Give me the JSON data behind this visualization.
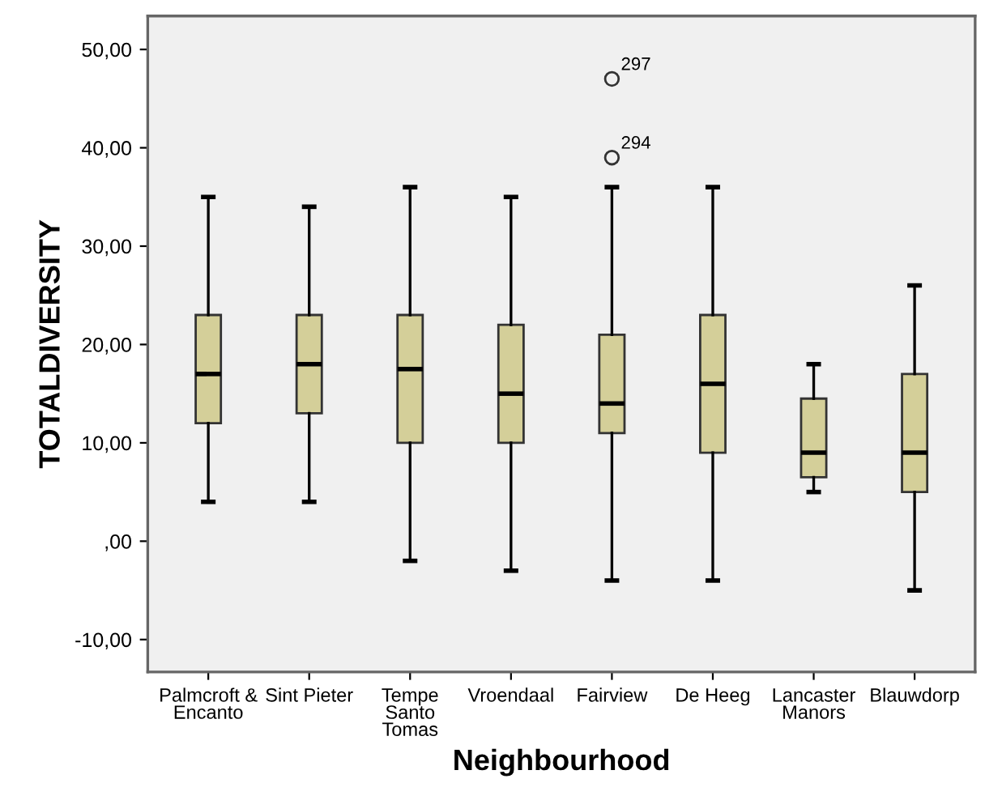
{
  "chart_data": {
    "type": "box",
    "xlabel": "Neighbourhood",
    "ylabel": "TOTALDIVERSITY",
    "categories": [
      "Palmcroft &\nEncanto",
      "Sint Pieter",
      "Tempe\nSanto\nTomas",
      "Vroendaal",
      "Fairview",
      "De Heeg",
      "Lancaster\nManors",
      "Blauwdorp"
    ],
    "boxes": [
      {
        "low": 4,
        "q1": 12,
        "median": 17,
        "q3": 23,
        "high": 35
      },
      {
        "low": 4,
        "q1": 13,
        "median": 18,
        "q3": 23,
        "high": 34
      },
      {
        "low": -2,
        "q1": 10,
        "median": 17.5,
        "q3": 23,
        "high": 36
      },
      {
        "low": -3,
        "q1": 10,
        "median": 15,
        "q3": 22,
        "high": 35
      },
      {
        "low": -4,
        "q1": 11,
        "median": 14,
        "q3": 21,
        "high": 36,
        "outliers": [
          47,
          39
        ]
      },
      {
        "low": -4,
        "q1": 9,
        "median": 16,
        "q3": 23,
        "high": 36
      },
      {
        "low": 5,
        "q1": 6.5,
        "median": 9,
        "q3": 14.5,
        "high": 18
      },
      {
        "low": -5,
        "q1": 5,
        "median": 9,
        "q3": 17,
        "high": 26
      }
    ],
    "color": "#d4cf99",
    "annotations": [
      "297",
      "294"
    ],
    "ylim": [
      -13.3,
      53.4
    ],
    "yticks": [
      {
        "value": -10,
        "label": "-10,00"
      },
      {
        "value": 0,
        "label": ",00"
      },
      {
        "value": 10,
        "label": "10,00"
      },
      {
        "value": 20,
        "label": "20,00"
      },
      {
        "value": 30,
        "label": "30,00"
      },
      {
        "value": 40,
        "label": "40,00"
      },
      {
        "value": 50,
        "label": "50,00"
      }
    ],
    "grid": false,
    "legend": false
  }
}
